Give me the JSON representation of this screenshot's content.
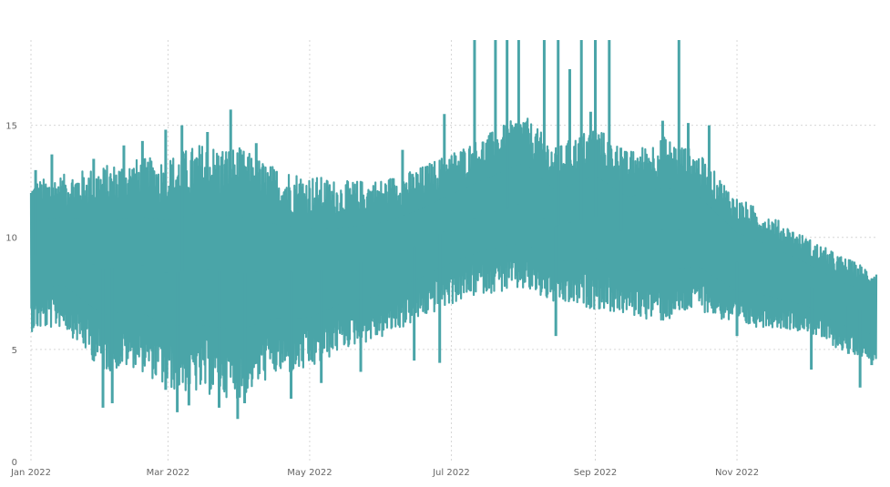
{
  "chart_data": {
    "type": "line",
    "title": "",
    "xlabel": "",
    "ylabel": "",
    "xlim": [
      "2022-01-01",
      "2022-12-31"
    ],
    "ylim": [
      0,
      18.8
    ],
    "grid": true,
    "colors": {
      "series": "#4AA5A8",
      "grid": "#d6d6d6",
      "tick": "#666666"
    },
    "y_ticks": [
      {
        "value": 0,
        "label": "0"
      },
      {
        "value": 5,
        "label": "5"
      },
      {
        "value": 10,
        "label": "10"
      },
      {
        "value": 15,
        "label": "15"
      }
    ],
    "x_ticks": [
      {
        "value": "2022-01-01",
        "label": "Jan 2022"
      },
      {
        "value": "2022-03-01",
        "label": "Mar 2022"
      },
      {
        "value": "2022-05-01",
        "label": "May 2022"
      },
      {
        "value": "2022-07-01",
        "label": "Jul 2022"
      },
      {
        "value": "2022-09-01",
        "label": "Sep 2022"
      },
      {
        "value": "2022-11-01",
        "label": "Nov 2022"
      }
    ],
    "series": [
      {
        "x_start": "2022-01-01",
        "x_end": "2022-12-31",
        "envelope": {
          "x": [
            "2022-01-01",
            "2022-01-15",
            "2022-02-01",
            "2022-02-15",
            "2022-03-01",
            "2022-03-15",
            "2022-04-01",
            "2022-04-15",
            "2022-05-01",
            "2022-05-15",
            "2022-06-01",
            "2022-06-15",
            "2022-07-01",
            "2022-07-15",
            "2022-08-01",
            "2022-08-15",
            "2022-09-01",
            "2022-09-15",
            "2022-10-01",
            "2022-10-15",
            "2022-11-01",
            "2022-11-15",
            "2022-12-01",
            "2022-12-15",
            "2022-12-31"
          ],
          "low": [
            5.8,
            6.0,
            4.0,
            4.2,
            3.2,
            3.0,
            2.8,
            3.8,
            4.0,
            5.0,
            5.5,
            6.2,
            7.0,
            7.5,
            7.6,
            7.0,
            6.8,
            6.5,
            6.2,
            6.8,
            6.0,
            6.0,
            5.8,
            5.0,
            4.5
          ],
          "high": [
            12.5,
            12.8,
            13.2,
            13.5,
            13.6,
            14.2,
            14.0,
            13.2,
            12.8,
            12.5,
            12.6,
            13.0,
            13.8,
            14.5,
            15.5,
            14.0,
            15.0,
            13.8,
            14.5,
            13.8,
            11.8,
            11.0,
            10.0,
            9.2,
            8.5
          ]
        },
        "spikes": [
          {
            "x": "2022-01-03",
            "y": 13.0
          },
          {
            "x": "2022-01-10",
            "y": 13.7
          },
          {
            "x": "2022-01-28",
            "y": 13.5
          },
          {
            "x": "2022-02-10",
            "y": 14.1
          },
          {
            "x": "2022-02-18",
            "y": 14.3
          },
          {
            "x": "2022-02-28",
            "y": 14.8
          },
          {
            "x": "2022-03-07",
            "y": 15.0
          },
          {
            "x": "2022-03-18",
            "y": 14.7
          },
          {
            "x": "2022-03-28",
            "y": 15.7
          },
          {
            "x": "2022-04-08",
            "y": 14.2
          },
          {
            "x": "2022-06-10",
            "y": 13.9
          },
          {
            "x": "2022-06-28",
            "y": 15.5
          },
          {
            "x": "2022-07-11",
            "y": 18.8
          },
          {
            "x": "2022-07-20",
            "y": 18.8
          },
          {
            "x": "2022-07-25",
            "y": 18.8
          },
          {
            "x": "2022-07-30",
            "y": 18.8
          },
          {
            "x": "2022-08-10",
            "y": 18.8
          },
          {
            "x": "2022-08-16",
            "y": 18.8
          },
          {
            "x": "2022-08-21",
            "y": 17.5
          },
          {
            "x": "2022-08-26",
            "y": 18.8
          },
          {
            "x": "2022-08-30",
            "y": 15.6
          },
          {
            "x": "2022-09-01",
            "y": 18.8
          },
          {
            "x": "2022-09-07",
            "y": 18.8
          },
          {
            "x": "2022-09-12",
            "y": 14.0
          },
          {
            "x": "2022-09-30",
            "y": 15.2
          },
          {
            "x": "2022-10-07",
            "y": 18.8
          },
          {
            "x": "2022-10-11",
            "y": 15.1
          },
          {
            "x": "2022-10-20",
            "y": 15.0
          }
        ],
        "dips": [
          {
            "x": "2022-02-01",
            "y": 2.4
          },
          {
            "x": "2022-02-05",
            "y": 2.6
          },
          {
            "x": "2022-02-28",
            "y": 3.2
          },
          {
            "x": "2022-03-05",
            "y": 2.2
          },
          {
            "x": "2022-03-10",
            "y": 2.5
          },
          {
            "x": "2022-03-23",
            "y": 2.4
          },
          {
            "x": "2022-03-31",
            "y": 1.9
          },
          {
            "x": "2022-04-03",
            "y": 2.6
          },
          {
            "x": "2022-04-23",
            "y": 2.8
          },
          {
            "x": "2022-05-06",
            "y": 3.5
          },
          {
            "x": "2022-05-23",
            "y": 4.0
          },
          {
            "x": "2022-06-15",
            "y": 4.5
          },
          {
            "x": "2022-06-26",
            "y": 4.4
          },
          {
            "x": "2022-08-15",
            "y": 5.6
          },
          {
            "x": "2022-11-01",
            "y": 5.6
          },
          {
            "x": "2022-12-03",
            "y": 4.1
          },
          {
            "x": "2022-12-19",
            "y": 4.8
          },
          {
            "x": "2022-12-24",
            "y": 3.3
          },
          {
            "x": "2022-12-29",
            "y": 4.3
          }
        ]
      }
    ]
  }
}
